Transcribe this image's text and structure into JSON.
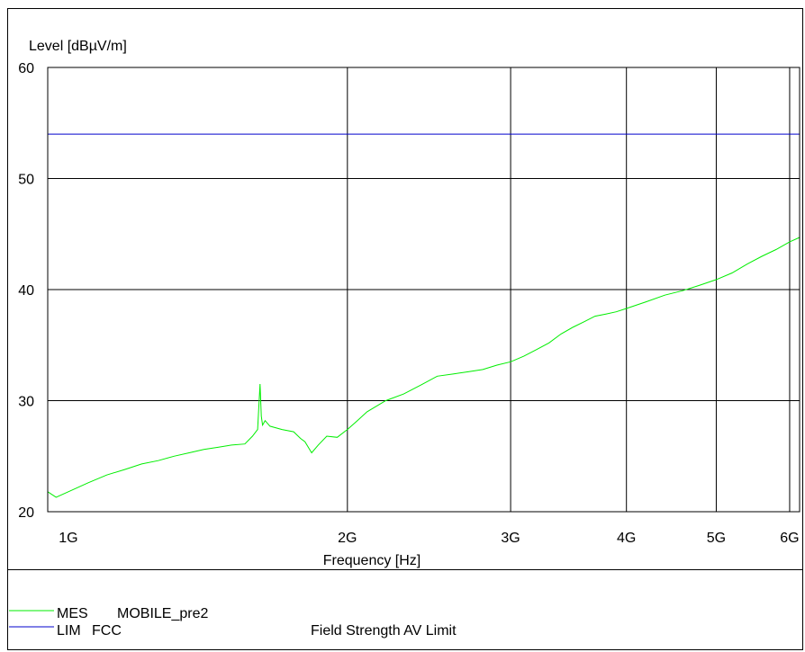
{
  "chart_data": {
    "type": "line",
    "ylabel": "Level [dBµV/m]",
    "xlabel": "Frequency [Hz]",
    "x_scale": "log",
    "xlim": [
      950000000,
      6150000000
    ],
    "ylim": [
      20,
      60
    ],
    "grid": true,
    "x_ticks": [
      {
        "value": 1000000000,
        "label": "1G"
      },
      {
        "value": 2000000000,
        "label": "2G"
      },
      {
        "value": 3000000000,
        "label": "3G"
      },
      {
        "value": 4000000000,
        "label": "4G"
      },
      {
        "value": 5000000000,
        "label": "5G"
      },
      {
        "value": 6000000000,
        "label": "6G"
      }
    ],
    "y_ticks": [
      20,
      30,
      40,
      50,
      60
    ],
    "series": [
      {
        "name": "MES MOBILE_pre2",
        "color": "#00ee00",
        "x": [
          950000000,
          970000000,
          1000000000,
          1050000000,
          1100000000,
          1150000000,
          1200000000,
          1250000000,
          1300000000,
          1350000000,
          1400000000,
          1450000000,
          1500000000,
          1550000000,
          1580000000,
          1600000000,
          1610000000,
          1615000000,
          1620000000,
          1630000000,
          1650000000,
          1700000000,
          1750000000,
          1780000000,
          1800000000,
          1830000000,
          1860000000,
          1900000000,
          1950000000,
          2000000000,
          2050000000,
          2100000000,
          2200000000,
          2300000000,
          2400000000,
          2500000000,
          2600000000,
          2700000000,
          2800000000,
          2900000000,
          3000000000,
          3100000000,
          3200000000,
          3300000000,
          3400000000,
          3500000000,
          3600000000,
          3700000000,
          3800000000,
          3900000000,
          4000000000,
          4200000000,
          4400000000,
          4600000000,
          4800000000,
          5000000000,
          5200000000,
          5400000000,
          5600000000,
          5800000000,
          6000000000,
          6150000000
        ],
        "y": [
          21.8,
          21.3,
          21.8,
          22.6,
          23.3,
          23.8,
          24.3,
          24.6,
          25.0,
          25.3,
          25.6,
          25.8,
          26.0,
          26.1,
          26.8,
          27.4,
          31.5,
          28.6,
          27.8,
          28.2,
          27.7,
          27.4,
          27.2,
          26.6,
          26.3,
          25.3,
          26.0,
          26.8,
          26.7,
          27.4,
          28.2,
          29.0,
          30.0,
          30.6,
          31.4,
          32.2,
          32.4,
          32.6,
          32.8,
          33.2,
          33.5,
          34.0,
          34.6,
          35.2,
          36.0,
          36.6,
          37.1,
          37.6,
          37.8,
          38.0,
          38.3,
          38.9,
          39.5,
          39.9,
          40.4,
          40.9,
          41.5,
          42.3,
          43.0,
          43.6,
          44.3,
          44.7
        ]
      },
      {
        "name": "LIM FCC Field Strength AV Limit",
        "color": "#0000cc",
        "x": [
          950000000,
          6150000000
        ],
        "y": [
          54.0,
          54.0
        ]
      }
    ]
  },
  "legend": [
    {
      "code": "MES",
      "name": "MOBILE_pre2",
      "desc": "",
      "color": "#00ee00"
    },
    {
      "code": "LIM",
      "name": "FCC",
      "desc": "Field Strength AV Limit",
      "color": "#0000cc"
    }
  ]
}
